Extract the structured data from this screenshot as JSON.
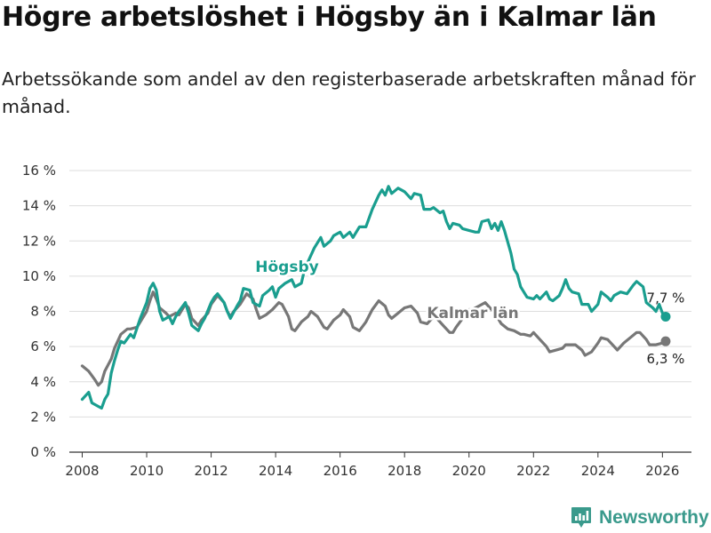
{
  "title": "Högre arbetslöshet i Högsby än i Kalmar län",
  "subtitle": "Arbetssökande som andel av den registerbaserade arbetskraften månad för månad.",
  "brand": {
    "name": "Newsworthy",
    "icon": "bar-chart-logo-icon"
  },
  "colors": {
    "hogsby": "#1a9e8f",
    "kalmar": "#777777",
    "grid": "#dddddd",
    "axis": "#333333"
  },
  "chart_data": {
    "type": "line",
    "xlim": [
      2007.6,
      2026.9
    ],
    "ylim": [
      0,
      16
    ],
    "x_ticks": [
      2008,
      2010,
      2012,
      2014,
      2016,
      2018,
      2020,
      2022,
      2024,
      2026
    ],
    "x_tick_labels": [
      "2008",
      "2010",
      "2012",
      "2014",
      "2016",
      "2018",
      "2020",
      "2022",
      "2024",
      "2026"
    ],
    "y_ticks": [
      0,
      2,
      4,
      6,
      8,
      10,
      12,
      14,
      16
    ],
    "y_tick_labels": [
      "0 %",
      "2 %",
      "4 %",
      "6 %",
      "8 %",
      "10 %",
      "12 %",
      "14 %",
      "16 %"
    ],
    "grid": true,
    "series": [
      {
        "name": "Kalmar län",
        "label": "Kalmar län",
        "end_label": "6,3 %",
        "color": "#777777",
        "points": [
          [
            2008.0,
            4.9
          ],
          [
            2008.2,
            4.6
          ],
          [
            2008.4,
            4.1
          ],
          [
            2008.5,
            3.8
          ],
          [
            2008.6,
            4.0
          ],
          [
            2008.7,
            4.6
          ],
          [
            2008.9,
            5.3
          ],
          [
            2009.0,
            5.9
          ],
          [
            2009.2,
            6.7
          ],
          [
            2009.4,
            7.0
          ],
          [
            2009.5,
            7.0
          ],
          [
            2009.7,
            7.1
          ],
          [
            2009.8,
            7.4
          ],
          [
            2010.0,
            8.0
          ],
          [
            2010.1,
            8.6
          ],
          [
            2010.2,
            9.1
          ],
          [
            2010.3,
            8.7
          ],
          [
            2010.4,
            8.2
          ],
          [
            2010.6,
            7.9
          ],
          [
            2010.7,
            7.7
          ],
          [
            2010.9,
            7.9
          ],
          [
            2011.0,
            7.8
          ],
          [
            2011.2,
            8.4
          ],
          [
            2011.3,
            8.2
          ],
          [
            2011.4,
            7.6
          ],
          [
            2011.6,
            7.2
          ],
          [
            2011.7,
            7.5
          ],
          [
            2011.9,
            7.9
          ],
          [
            2012.0,
            8.4
          ],
          [
            2012.2,
            8.9
          ],
          [
            2012.4,
            8.5
          ],
          [
            2012.5,
            8.0
          ],
          [
            2012.6,
            7.7
          ],
          [
            2012.7,
            8.0
          ],
          [
            2012.9,
            8.4
          ],
          [
            2013.1,
            9.0
          ],
          [
            2013.3,
            8.7
          ],
          [
            2013.4,
            8.1
          ],
          [
            2013.5,
            7.6
          ],
          [
            2013.7,
            7.8
          ],
          [
            2013.9,
            8.1
          ],
          [
            2014.1,
            8.5
          ],
          [
            2014.2,
            8.4
          ],
          [
            2014.4,
            7.7
          ],
          [
            2014.5,
            7.0
          ],
          [
            2014.6,
            6.9
          ],
          [
            2014.8,
            7.4
          ],
          [
            2015.0,
            7.7
          ],
          [
            2015.1,
            8.0
          ],
          [
            2015.3,
            7.7
          ],
          [
            2015.5,
            7.1
          ],
          [
            2015.6,
            7.0
          ],
          [
            2015.8,
            7.5
          ],
          [
            2016.0,
            7.8
          ],
          [
            2016.1,
            8.1
          ],
          [
            2016.3,
            7.7
          ],
          [
            2016.4,
            7.1
          ],
          [
            2016.6,
            6.9
          ],
          [
            2016.8,
            7.4
          ],
          [
            2017.0,
            8.1
          ],
          [
            2017.2,
            8.6
          ],
          [
            2017.4,
            8.3
          ],
          [
            2017.5,
            7.8
          ],
          [
            2017.6,
            7.6
          ],
          [
            2017.8,
            7.9
          ],
          [
            2018.0,
            8.2
          ],
          [
            2018.2,
            8.3
          ],
          [
            2018.4,
            7.9
          ],
          [
            2018.5,
            7.4
          ],
          [
            2018.7,
            7.3
          ],
          [
            2018.9,
            7.7
          ],
          [
            2019.0,
            7.6
          ],
          [
            2019.2,
            7.2
          ],
          [
            2019.4,
            6.8
          ],
          [
            2019.5,
            6.8
          ],
          [
            2019.6,
            7.1
          ],
          [
            2019.8,
            7.6
          ],
          [
            2020.0,
            8.1
          ],
          [
            2020.1,
            8.1
          ],
          [
            2020.3,
            8.3
          ],
          [
            2020.5,
            8.5
          ],
          [
            2020.6,
            8.3
          ],
          [
            2020.8,
            7.9
          ],
          [
            2020.9,
            7.6
          ],
          [
            2021.0,
            7.3
          ],
          [
            2021.2,
            7.0
          ],
          [
            2021.4,
            6.9
          ],
          [
            2021.6,
            6.7
          ],
          [
            2021.7,
            6.7
          ],
          [
            2021.9,
            6.6
          ],
          [
            2022.0,
            6.8
          ],
          [
            2022.2,
            6.4
          ],
          [
            2022.4,
            6.0
          ],
          [
            2022.5,
            5.7
          ],
          [
            2022.7,
            5.8
          ],
          [
            2022.9,
            5.9
          ],
          [
            2023.0,
            6.1
          ],
          [
            2023.3,
            6.1
          ],
          [
            2023.5,
            5.8
          ],
          [
            2023.6,
            5.5
          ],
          [
            2023.8,
            5.7
          ],
          [
            2024.0,
            6.2
          ],
          [
            2024.1,
            6.5
          ],
          [
            2024.3,
            6.4
          ],
          [
            2024.5,
            6.0
          ],
          [
            2024.6,
            5.8
          ],
          [
            2024.8,
            6.2
          ],
          [
            2025.0,
            6.5
          ],
          [
            2025.2,
            6.8
          ],
          [
            2025.3,
            6.8
          ],
          [
            2025.5,
            6.4
          ],
          [
            2025.6,
            6.1
          ],
          [
            2025.8,
            6.1
          ],
          [
            2026.0,
            6.2
          ],
          [
            2026.1,
            6.3
          ]
        ]
      },
      {
        "name": "Högsby",
        "label": "Högsby",
        "end_label": "7,7 %",
        "color": "#1a9e8f",
        "points": [
          [
            2008.0,
            3.0
          ],
          [
            2008.2,
            3.4
          ],
          [
            2008.3,
            2.8
          ],
          [
            2008.5,
            2.6
          ],
          [
            2008.6,
            2.5
          ],
          [
            2008.7,
            3.0
          ],
          [
            2008.8,
            3.3
          ],
          [
            2008.9,
            4.5
          ],
          [
            2009.0,
            5.2
          ],
          [
            2009.1,
            5.8
          ],
          [
            2009.2,
            6.3
          ],
          [
            2009.3,
            6.2
          ],
          [
            2009.5,
            6.7
          ],
          [
            2009.6,
            6.5
          ],
          [
            2009.8,
            7.6
          ],
          [
            2010.0,
            8.5
          ],
          [
            2010.1,
            9.3
          ],
          [
            2010.2,
            9.6
          ],
          [
            2010.3,
            9.2
          ],
          [
            2010.4,
            8.0
          ],
          [
            2010.5,
            7.5
          ],
          [
            2010.7,
            7.7
          ],
          [
            2010.8,
            7.3
          ],
          [
            2010.9,
            7.7
          ],
          [
            2011.0,
            8.0
          ],
          [
            2011.2,
            8.5
          ],
          [
            2011.3,
            7.9
          ],
          [
            2011.4,
            7.2
          ],
          [
            2011.6,
            6.9
          ],
          [
            2011.7,
            7.3
          ],
          [
            2011.8,
            7.6
          ],
          [
            2012.0,
            8.5
          ],
          [
            2012.1,
            8.8
          ],
          [
            2012.2,
            9.0
          ],
          [
            2012.4,
            8.5
          ],
          [
            2012.5,
            8.0
          ],
          [
            2012.6,
            7.6
          ],
          [
            2012.8,
            8.3
          ],
          [
            2012.9,
            8.6
          ],
          [
            2013.0,
            9.3
          ],
          [
            2013.2,
            9.2
          ],
          [
            2013.3,
            8.5
          ],
          [
            2013.5,
            8.3
          ],
          [
            2013.6,
            8.9
          ],
          [
            2013.8,
            9.2
          ],
          [
            2013.9,
            9.4
          ],
          [
            2014.0,
            8.8
          ],
          [
            2014.1,
            9.3
          ],
          [
            2014.3,
            9.6
          ],
          [
            2014.5,
            9.8
          ],
          [
            2014.6,
            9.4
          ],
          [
            2014.8,
            9.6
          ],
          [
            2014.9,
            10.4
          ],
          [
            2015.0,
            10.8
          ],
          [
            2015.2,
            11.6
          ],
          [
            2015.3,
            11.9
          ],
          [
            2015.4,
            12.2
          ],
          [
            2015.5,
            11.7
          ],
          [
            2015.7,
            12.0
          ],
          [
            2015.8,
            12.3
          ],
          [
            2016.0,
            12.5
          ],
          [
            2016.1,
            12.2
          ],
          [
            2016.3,
            12.5
          ],
          [
            2016.4,
            12.2
          ],
          [
            2016.6,
            12.8
          ],
          [
            2016.8,
            12.8
          ],
          [
            2017.0,
            13.8
          ],
          [
            2017.2,
            14.6
          ],
          [
            2017.3,
            14.9
          ],
          [
            2017.4,
            14.6
          ],
          [
            2017.5,
            15.1
          ],
          [
            2017.6,
            14.7
          ],
          [
            2017.8,
            15.0
          ],
          [
            2018.0,
            14.8
          ],
          [
            2018.2,
            14.4
          ],
          [
            2018.3,
            14.7
          ],
          [
            2018.5,
            14.6
          ],
          [
            2018.6,
            13.8
          ],
          [
            2018.8,
            13.8
          ],
          [
            2018.9,
            13.9
          ],
          [
            2019.1,
            13.6
          ],
          [
            2019.2,
            13.7
          ],
          [
            2019.3,
            13.1
          ],
          [
            2019.4,
            12.7
          ],
          [
            2019.5,
            13.0
          ],
          [
            2019.7,
            12.9
          ],
          [
            2019.8,
            12.7
          ],
          [
            2020.0,
            12.6
          ],
          [
            2020.2,
            12.5
          ],
          [
            2020.3,
            12.5
          ],
          [
            2020.4,
            13.1
          ],
          [
            2020.6,
            13.2
          ],
          [
            2020.7,
            12.7
          ],
          [
            2020.8,
            13.0
          ],
          [
            2020.9,
            12.6
          ],
          [
            2021.0,
            13.1
          ],
          [
            2021.1,
            12.6
          ],
          [
            2021.3,
            11.3
          ],
          [
            2021.4,
            10.4
          ],
          [
            2021.5,
            10.1
          ],
          [
            2021.6,
            9.4
          ],
          [
            2021.8,
            8.8
          ],
          [
            2022.0,
            8.7
          ],
          [
            2022.1,
            8.9
          ],
          [
            2022.2,
            8.7
          ],
          [
            2022.4,
            9.1
          ],
          [
            2022.5,
            8.7
          ],
          [
            2022.6,
            8.6
          ],
          [
            2022.8,
            8.9
          ],
          [
            2022.9,
            9.3
          ],
          [
            2023.0,
            9.8
          ],
          [
            2023.1,
            9.3
          ],
          [
            2023.2,
            9.1
          ],
          [
            2023.4,
            9.0
          ],
          [
            2023.5,
            8.4
          ],
          [
            2023.7,
            8.4
          ],
          [
            2023.8,
            8.0
          ],
          [
            2024.0,
            8.4
          ],
          [
            2024.1,
            9.1
          ],
          [
            2024.3,
            8.8
          ],
          [
            2024.4,
            8.6
          ],
          [
            2024.5,
            8.9
          ],
          [
            2024.7,
            9.1
          ],
          [
            2024.9,
            9.0
          ],
          [
            2025.1,
            9.5
          ],
          [
            2025.2,
            9.7
          ],
          [
            2025.4,
            9.4
          ],
          [
            2025.5,
            8.5
          ],
          [
            2025.7,
            8.2
          ],
          [
            2025.8,
            8.0
          ],
          [
            2025.9,
            8.4
          ],
          [
            2026.0,
            7.9
          ],
          [
            2026.1,
            7.7
          ]
        ]
      }
    ]
  }
}
